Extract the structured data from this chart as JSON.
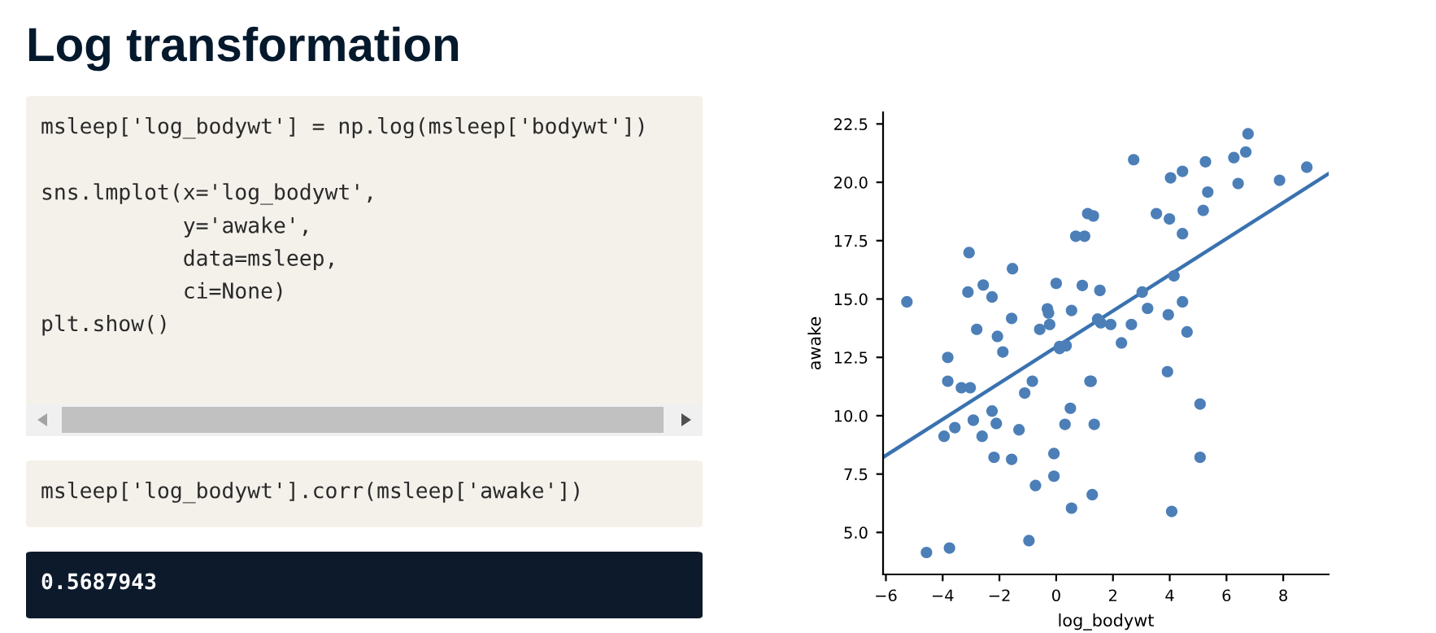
{
  "chart_data": {
    "type": "scatter",
    "title": "Log transformation",
    "xlabel": "log_bodywt",
    "ylabel": "awake",
    "annotations": [
      "msleep['log_bodywt'] = np.log(msleep['bodywt'])\n\nsns.lmplot(x='log_bodywt',\n           y='awake',\n           data=msleep,\n           ci=None)\nplt.show()",
      "msleep['log_bodywt'].corr(msleep['awake'])",
      "0.5687943"
    ],
    "xlim": [
      -6.1,
      9.6
    ],
    "ylim": [
      3.2,
      23.0
    ],
    "xticks": [
      {
        "value": -6,
        "label": "−6"
      },
      {
        "value": -4,
        "label": "−4"
      },
      {
        "value": -2,
        "label": "−2"
      },
      0,
      2,
      4,
      6,
      8
    ],
    "yticks": [
      {
        "value": 5,
        "label": "5.0"
      },
      7.5,
      {
        "value": 10,
        "label": "10.0"
      },
      12.5,
      {
        "value": 15,
        "label": "15.0"
      },
      17.5,
      {
        "value": 20,
        "label": "20.0"
      },
      22.5
    ],
    "grid": false,
    "series": [
      {
        "marker": "circle",
        "color": "#4c7fb8",
        "x": [
          -5.26,
          -3.07,
          -3.11,
          -2.57,
          -2.26,
          -1.54,
          -2.8,
          -2.07,
          -1.57,
          -1.88,
          -3.82,
          -0.58,
          -0.31,
          -0.27,
          -0.23,
          0.0,
          0.12,
          0.35,
          0.12,
          0.54,
          0.69,
          1.0,
          1.11,
          1.31,
          0.92,
          1.54,
          1.46,
          1.57,
          1.92,
          2.3,
          2.65,
          2.73,
          3.03,
          3.22,
          3.53,
          4.03,
          3.99,
          4.45,
          4.45,
          4.15,
          4.45,
          3.95,
          4.61,
          5.26,
          5.34,
          5.18,
          6.26,
          6.68,
          6.76,
          6.41,
          7.87,
          8.83,
          -3.82,
          -3.34,
          -3.03,
          -2.26,
          -2.92,
          -2.11,
          -3.95,
          -3.57,
          -2.61,
          -1.31,
          -1.11,
          -0.84,
          -2.19,
          -1.57,
          -0.08,
          -0.08,
          -0.73,
          0.5,
          0.31,
          1.19,
          1.23,
          1.34,
          1.27,
          0.54,
          -0.96,
          -4.57,
          -3.76,
          3.92,
          5.07,
          5.07,
          4.07
        ],
        "values": [
          14.88,
          16.99,
          15.3,
          15.6,
          15.09,
          16.3,
          13.7,
          13.4,
          14.17,
          12.73,
          12.5,
          13.7,
          14.58,
          14.4,
          13.91,
          15.67,
          12.97,
          13.0,
          12.88,
          14.51,
          17.69,
          17.69,
          18.66,
          18.56,
          15.58,
          15.37,
          14.14,
          13.98,
          13.91,
          13.12,
          13.91,
          20.97,
          15.3,
          14.6,
          18.66,
          20.19,
          18.43,
          20.47,
          17.8,
          15.99,
          14.88,
          14.33,
          13.59,
          20.88,
          19.58,
          18.8,
          21.06,
          21.3,
          22.08,
          19.95,
          20.09,
          20.65,
          11.48,
          11.2,
          11.2,
          10.2,
          9.81,
          9.67,
          9.12,
          9.49,
          9.12,
          9.4,
          10.97,
          11.48,
          8.22,
          8.13,
          8.38,
          7.41,
          7.01,
          10.32,
          9.63,
          11.48,
          11.48,
          9.63,
          6.62,
          6.04,
          4.65,
          4.14,
          4.33,
          11.89,
          10.5,
          8.22,
          5.9
        ]
      },
      {
        "type": "line",
        "color": "#3a72b0",
        "x": [
          -6.1,
          9.6
        ],
        "values": [
          8.22,
          20.37
        ]
      }
    ]
  }
}
